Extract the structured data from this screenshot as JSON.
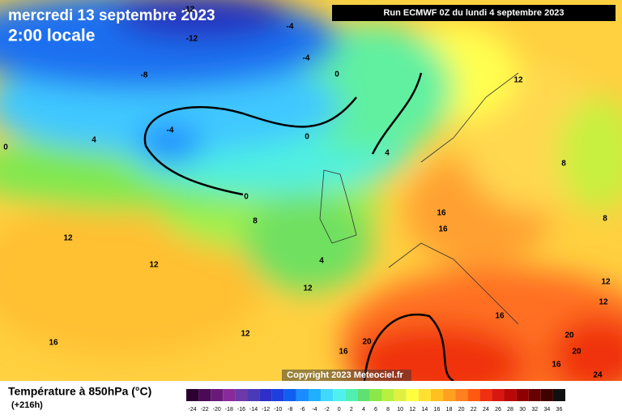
{
  "header": {
    "date": "mercredi 13 septembre 2023",
    "time": "2:00 locale",
    "run": "Run ECMWF 0Z du lundi 4 septembre 2023"
  },
  "copyright": "Copyright 2023 Meteociel.fr",
  "legend": {
    "title": "Température à 850hPa (°C)",
    "lead": "(+216h)",
    "scale": [
      -24,
      -22,
      -20,
      -18,
      -16,
      -14,
      -12,
      -10,
      -8,
      -6,
      -4,
      -2,
      0,
      2,
      4,
      6,
      8,
      10,
      12,
      14,
      16,
      18,
      20,
      22,
      24,
      26,
      28,
      30,
      32,
      34,
      36
    ],
    "colors": [
      "#2b0030",
      "#4a0a55",
      "#6a1a7a",
      "#8a2a9a",
      "#6b3aa8",
      "#4b3ab8",
      "#2e2ec8",
      "#1e3ee0",
      "#1060f0",
      "#1a8cff",
      "#20b0ff",
      "#40d8ff",
      "#50f0f0",
      "#50f0b0",
      "#60e070",
      "#8ce848",
      "#b8f040",
      "#e0f040",
      "#ffff40",
      "#ffe030",
      "#ffc020",
      "#ffa020",
      "#ff8020",
      "#ff5a10",
      "#f03010",
      "#d81810",
      "#b80808",
      "#900000",
      "#680000",
      "#400000",
      "#101010"
    ]
  },
  "contour_labels": [
    -12,
    -12,
    -4,
    -8,
    -4,
    0,
    4,
    -4,
    0,
    0,
    4,
    0,
    8,
    12,
    12,
    4,
    12,
    12,
    8,
    16,
    16,
    8,
    12,
    12,
    16,
    20,
    20,
    16,
    24,
    20,
    16,
    12,
    16
  ]
}
